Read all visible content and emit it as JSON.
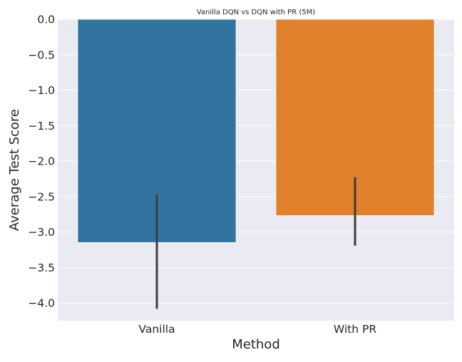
{
  "chart_data": {
    "type": "bar",
    "title": "Vanilla DQN vs DQN with PR (5M)",
    "xlabel": "Method",
    "ylabel": "Average Test Score",
    "categories": [
      "Vanilla",
      "With PR"
    ],
    "values": [
      -3.15,
      -2.77
    ],
    "error_bars": [
      {
        "low": -4.07,
        "high": -2.48
      },
      {
        "low": -3.18,
        "high": -2.24
      }
    ],
    "ylim": [
      -4.25,
      0.0
    ],
    "yticks": [
      0.0,
      -0.5,
      -1.0,
      -1.5,
      -2.0,
      -2.5,
      -3.0,
      -3.5,
      -4.0
    ],
    "ytick_labels": [
      "0.0",
      "−0.5",
      "−1.0",
      "−1.5",
      "−2.0",
      "−2.5",
      "−3.0",
      "−3.5",
      "−4.0"
    ],
    "grid": true,
    "colors": {
      "plot_background": "#eaeaf2",
      "grid": "#ffffff",
      "bars": [
        "#3274a1",
        "#e1812c"
      ],
      "error_bar": "#3d3d3d",
      "text": "#262626"
    }
  }
}
